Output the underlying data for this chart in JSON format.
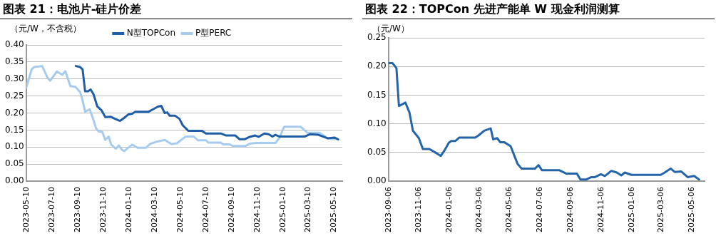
{
  "chart_data": [
    {
      "type": "line",
      "title": "图表 21：电池片-硅片价差",
      "ylabel": "（元/W，不含税）",
      "xlim": [
        "2023-05-10",
        "2025-05-30"
      ],
      "xticks": [
        "2023-05-10",
        "2023-07-10",
        "2023-09-10",
        "2023-11-10",
        "2024-01-10",
        "2024-03-10",
        "2024-05-10",
        "2024-07-10",
        "2024-09-10",
        "2024-11-10",
        "2025-01-10",
        "2025-03-10",
        "2025-05-10"
      ],
      "ylim": [
        0,
        0.4
      ],
      "yticks": [
        {
          "value": 0,
          "label": "0.00"
        },
        {
          "value": 0.05,
          "label": "0.05"
        },
        {
          "value": 0.1,
          "label": "0.10"
        },
        {
          "value": 0.15,
          "label": "0.15"
        },
        {
          "value": 0.2,
          "label": "0.20"
        },
        {
          "value": 0.25,
          "label": "0.25"
        },
        {
          "value": 0.3,
          "label": "0.30"
        },
        {
          "value": 0.35,
          "label": "0.35"
        },
        {
          "value": 0.4,
          "label": "0.40"
        }
      ],
      "grid": "y",
      "legend": "top",
      "line_style": "solid",
      "marker": "none",
      "series": [
        {
          "name": "N型TOPCon",
          "color": "#1f5ea6",
          "x": [
            "2023-09-05",
            "2023-09-15",
            "2023-09-21",
            "2023-09-27",
            "2023-10-04",
            "2023-10-10",
            "2023-10-17",
            "2023-10-26",
            "2023-11-05",
            "2023-11-14",
            "2023-11-27",
            "2023-12-07",
            "2023-12-19",
            "2023-12-29",
            "2024-01-08",
            "2024-01-17",
            "2024-01-24",
            "2024-02-25",
            "2024-03-05",
            "2024-03-18",
            "2024-03-26",
            "2024-04-03",
            "2024-04-09",
            "2024-04-15",
            "2024-04-28",
            "2024-05-08",
            "2024-05-16",
            "2024-05-29",
            "2024-06-30",
            "2024-07-10",
            "2024-08-14",
            "2024-08-27",
            "2024-09-18",
            "2024-09-28",
            "2024-10-10",
            "2024-10-22",
            "2024-11-04",
            "2024-11-12",
            "2024-11-26",
            "2024-12-06",
            "2024-12-15",
            "2024-12-22",
            "2024-12-31",
            "2025-03-02",
            "2025-03-15",
            "2025-04-03",
            "2025-04-25",
            "2025-05-11",
            "2025-05-20"
          ],
          "values": [
            0.338,
            0.335,
            0.328,
            0.264,
            0.264,
            0.269,
            0.255,
            0.219,
            0.208,
            0.188,
            0.189,
            0.183,
            0.177,
            0.186,
            0.196,
            0.198,
            0.204,
            0.204,
            0.21,
            0.219,
            0.221,
            0.2,
            0.202,
            0.192,
            0.192,
            0.183,
            0.164,
            0.148,
            0.148,
            0.14,
            0.14,
            0.134,
            0.134,
            0.123,
            0.123,
            0.13,
            0.134,
            0.13,
            0.14,
            0.138,
            0.131,
            0.136,
            0.131,
            0.131,
            0.138,
            0.136,
            0.126,
            0.128,
            0.123
          ]
        },
        {
          "name": "P型PERC",
          "color": "#a6cbee",
          "x": [
            "2023-05-10",
            "2023-05-23",
            "2023-05-29",
            "2023-06-17",
            "2023-06-30",
            "2023-07-06",
            "2023-07-22",
            "2023-08-04",
            "2023-08-11",
            "2023-08-23",
            "2023-09-04",
            "2023-09-15",
            "2023-09-21",
            "2023-09-27",
            "2023-10-08",
            "2023-10-17",
            "2023-10-23",
            "2023-10-29",
            "2023-11-07",
            "2023-11-14",
            "2023-11-22",
            "2023-11-28",
            "2023-12-09",
            "2023-12-16",
            "2023-12-23",
            "2023-12-29",
            "2024-01-06",
            "2024-01-17",
            "2024-01-30",
            "2024-02-18",
            "2024-02-28",
            "2024-03-15",
            "2024-04-03",
            "2024-04-19",
            "2024-05-02",
            "2024-05-11",
            "2024-05-23",
            "2024-06-11",
            "2024-06-21",
            "2024-07-10",
            "2024-07-16",
            "2024-08-14",
            "2024-08-20",
            "2024-09-05",
            "2024-09-11",
            "2024-10-12",
            "2024-10-22",
            "2024-11-07",
            "2024-12-22",
            "2024-12-31",
            "2025-01-12",
            "2025-02-20",
            "2025-03-08",
            "2025-04-06",
            "2025-04-25",
            "2025-05-11"
          ],
          "values": [
            0.274,
            0.328,
            0.335,
            0.338,
            0.303,
            0.295,
            0.322,
            0.312,
            0.323,
            0.279,
            0.277,
            0.262,
            0.237,
            0.204,
            0.211,
            0.179,
            0.155,
            0.146,
            0.144,
            0.121,
            0.131,
            0.107,
            0.095,
            0.105,
            0.093,
            0.088,
            0.097,
            0.107,
            0.098,
            0.098,
            0.109,
            0.116,
            0.121,
            0.109,
            0.111,
            0.12,
            0.131,
            0.131,
            0.12,
            0.12,
            0.113,
            0.113,
            0.108,
            0.108,
            0.103,
            0.103,
            0.11,
            0.112,
            0.112,
            0.126,
            0.16,
            0.16,
            0.142,
            0.142,
            0.126,
            0.123
          ]
        }
      ]
    },
    {
      "type": "line",
      "title": "图表 22：TOPCon 先进产能单 W 现金利润测算",
      "ylabel": "（元/W）",
      "xlim": [
        "2023-09-06",
        "2025-06-01"
      ],
      "xticks": [
        "2023-09-06",
        "2023-11-06",
        "2024-01-06",
        "2024-03-06",
        "2024-05-06",
        "2024-07-06",
        "2024-09-06",
        "2024-11-06",
        "2025-01-06",
        "2025-03-06",
        "2025-05-06"
      ],
      "ylim": [
        0,
        0.25
      ],
      "yticks": [
        {
          "value": 0,
          "label": "0.00"
        },
        {
          "value": 0.05,
          "label": "0.05"
        },
        {
          "value": 0.1,
          "label": "0.10"
        },
        {
          "value": 0.15,
          "label": "0.15"
        },
        {
          "value": 0.2,
          "label": "0.20"
        },
        {
          "value": 0.25,
          "label": "0.25"
        }
      ],
      "grid": "y",
      "line_style": "solid",
      "marker": "none",
      "series": [
        {
          "color": "#2565aa",
          "x": [
            "2023-09-06",
            "2023-09-14",
            "2023-09-22",
            "2023-09-27",
            "2023-10-10",
            "2023-10-18",
            "2023-10-25",
            "2023-11-06",
            "2023-11-14",
            "2023-11-27",
            "2023-12-09",
            "2023-12-20",
            "2023-12-27",
            "2024-01-05",
            "2024-01-10",
            "2024-01-18",
            "2024-01-26",
            "2024-02-27",
            "2024-03-05",
            "2024-03-16",
            "2024-03-29",
            "2024-04-03",
            "2024-04-11",
            "2024-04-17",
            "2024-04-25",
            "2024-05-08",
            "2024-05-17",
            "2024-05-22",
            "2024-05-30",
            "2024-06-26",
            "2024-07-03",
            "2024-07-10",
            "2024-08-14",
            "2024-08-28",
            "2024-09-18",
            "2024-09-25",
            "2024-10-07",
            "2024-10-17",
            "2024-10-24",
            "2024-11-05",
            "2024-11-13",
            "2024-11-26",
            "2024-12-07",
            "2024-12-16",
            "2024-12-23",
            "2025-01-05",
            "2025-03-05",
            "2025-03-13",
            "2025-03-25",
            "2025-04-02",
            "2025-04-15",
            "2025-04-28",
            "2025-05-11",
            "2025-05-21"
          ],
          "values": [
            0.206,
            0.206,
            0.197,
            0.131,
            0.137,
            0.12,
            0.088,
            0.075,
            0.056,
            0.056,
            0.05,
            0.044,
            0.053,
            0.067,
            0.07,
            0.07,
            0.076,
            0.076,
            0.08,
            0.088,
            0.092,
            0.073,
            0.075,
            0.068,
            0.068,
            0.061,
            0.041,
            0.03,
            0.022,
            0.022,
            0.028,
            0.019,
            0.019,
            0.013,
            0.013,
            0.003,
            0.003,
            0.007,
            0.007,
            0.012,
            0.009,
            0.018,
            0.015,
            0.01,
            0.015,
            0.011,
            0.011,
            0.015,
            0.022,
            0.016,
            0.017,
            0.007,
            0.009,
            0.003
          ]
        }
      ]
    }
  ]
}
